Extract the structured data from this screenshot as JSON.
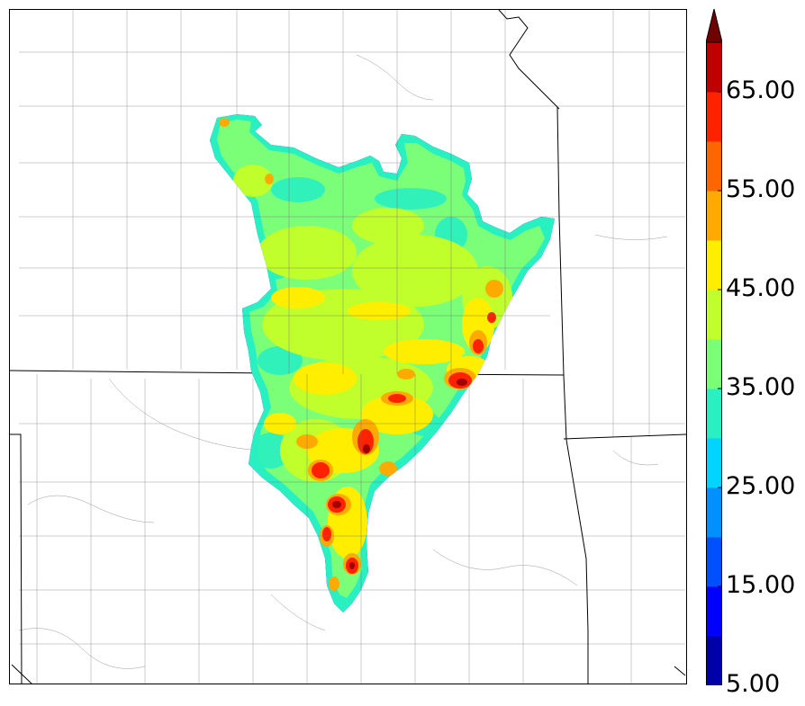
{
  "map": {
    "colorbar": {
      "min": 5,
      "max": 70,
      "step": 5,
      "extend": "max",
      "tick_labels": [
        "65.00",
        "55.00",
        "45.00",
        "35.00",
        "25.00",
        "15.00",
        "5.00"
      ],
      "tick_values": [
        65,
        55,
        45,
        35,
        25,
        15,
        5
      ],
      "colors": [
        "#0000aa",
        "#0000ff",
        "#0050ff",
        "#0090ff",
        "#00d4ff",
        "#28f0c0",
        "#7cff78",
        "#c0ff2c",
        "#ffee00",
        "#ffaa00",
        "#ff6600",
        "#ff2200",
        "#c00000",
        "#700000"
      ]
    }
  }
}
